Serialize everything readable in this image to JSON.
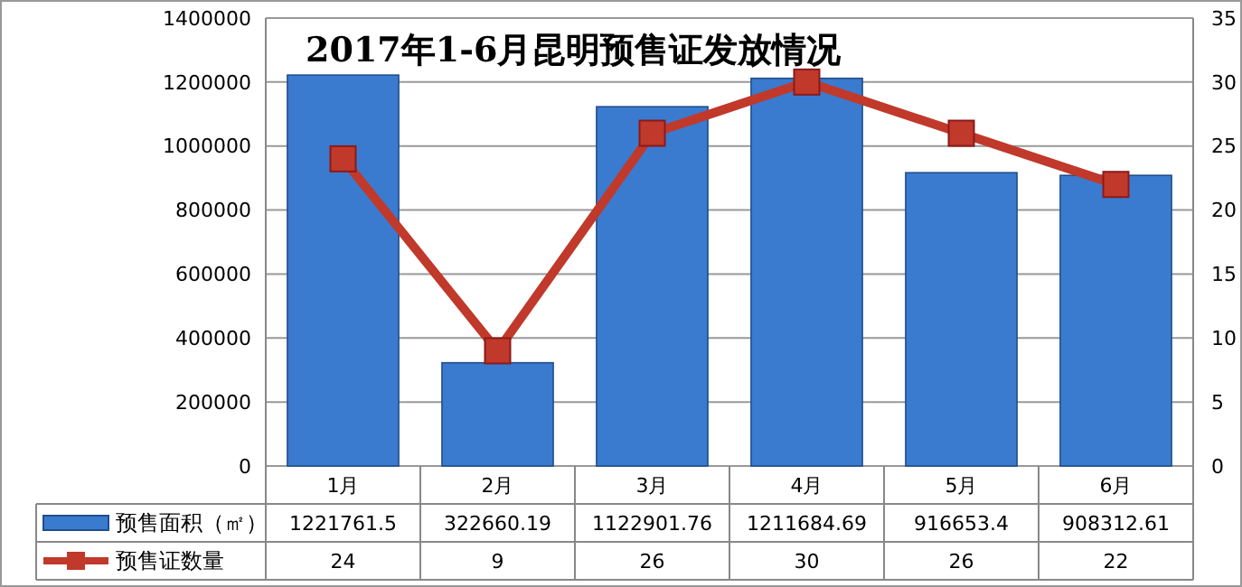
{
  "chart_data": {
    "type": "bar",
    "title": "2017年1-6月昆明预售证发放情况",
    "categories": [
      "1月",
      "2月",
      "3月",
      "4月",
      "5月",
      "6月"
    ],
    "series": [
      {
        "name": "预售面积（㎡）",
        "color": "#3a7bd0",
        "values": [
          1221761.5,
          322660.19,
          1122901.76,
          1211684.69,
          916653.4,
          908312.61
        ]
      },
      {
        "name": "预售证数量",
        "type": "line",
        "axis": "y2",
        "color": "#c0392b",
        "marker": "square",
        "values": [
          24,
          9,
          26,
          30,
          26,
          22
        ]
      }
    ],
    "ylim": [
      0,
      1400000
    ],
    "yticks": [
      0,
      200000,
      400000,
      600000,
      800000,
      1000000,
      1200000,
      1400000
    ],
    "y2lim": [
      0,
      35
    ],
    "y2ticks": [
      0,
      5,
      10,
      15,
      20,
      25,
      30,
      35
    ],
    "grid": "y",
    "legend": "bottom",
    "data_labels": true
  }
}
